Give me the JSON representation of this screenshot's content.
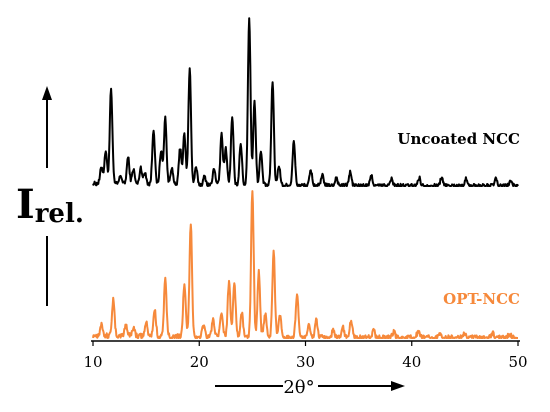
{
  "chart_data": {
    "type": "line",
    "x_range": [
      10,
      50
    ],
    "x_ticks": [
      10,
      20,
      30,
      40,
      50
    ],
    "x_tick_labels": [
      "10",
      "20",
      "30",
      "40",
      "50"
    ],
    "xlabel": "2θ°",
    "ylabel_main": "I",
    "ylabel_sub": "rel.",
    "grid": false,
    "series": [
      {
        "name": "Uncoated NCC",
        "color": "#000000",
        "baseline": 0.0,
        "noise": 0.012,
        "decay": 0.25,
        "peaks": [
          [
            10.8,
            0.1
          ],
          [
            11.2,
            0.2
          ],
          [
            11.7,
            0.57
          ],
          [
            12.6,
            0.05
          ],
          [
            13.3,
            0.16
          ],
          [
            13.8,
            0.09
          ],
          [
            14.5,
            0.1
          ],
          [
            14.9,
            0.07
          ],
          [
            15.7,
            0.33
          ],
          [
            16.4,
            0.2
          ],
          [
            16.8,
            0.4
          ],
          [
            17.4,
            0.1
          ],
          [
            18.2,
            0.22
          ],
          [
            18.6,
            0.3
          ],
          [
            19.1,
            0.7
          ],
          [
            19.7,
            0.1
          ],
          [
            20.5,
            0.05
          ],
          [
            21.4,
            0.1
          ],
          [
            22.1,
            0.3
          ],
          [
            22.5,
            0.22
          ],
          [
            23.1,
            0.4
          ],
          [
            23.9,
            0.25
          ],
          [
            24.7,
            1.0
          ],
          [
            25.2,
            0.5
          ],
          [
            25.8,
            0.2
          ],
          [
            26.9,
            0.62
          ],
          [
            27.5,
            0.12
          ],
          [
            28.9,
            0.26
          ],
          [
            30.5,
            0.09
          ],
          [
            31.6,
            0.06
          ],
          [
            32.9,
            0.05
          ],
          [
            34.2,
            0.08
          ],
          [
            36.2,
            0.06
          ],
          [
            38.1,
            0.04
          ],
          [
            40.7,
            0.05
          ],
          [
            42.8,
            0.05
          ],
          [
            45.1,
            0.04
          ],
          [
            47.9,
            0.04
          ],
          [
            49.3,
            0.03
          ]
        ]
      },
      {
        "name": "OPT-NCC",
        "color": "#F6893B",
        "baseline": 0.0,
        "noise": 0.018,
        "decay": 0.3,
        "peaks": [
          [
            10.8,
            0.08
          ],
          [
            11.9,
            0.24
          ],
          [
            13.1,
            0.08
          ],
          [
            13.8,
            0.06
          ],
          [
            15.0,
            0.09
          ],
          [
            15.8,
            0.18
          ],
          [
            16.8,
            0.38
          ],
          [
            18.6,
            0.36
          ],
          [
            19.2,
            0.76
          ],
          [
            20.4,
            0.08
          ],
          [
            21.3,
            0.12
          ],
          [
            22.1,
            0.17
          ],
          [
            22.8,
            0.38
          ],
          [
            23.3,
            0.38
          ],
          [
            24.0,
            0.17
          ],
          [
            25.0,
            1.0
          ],
          [
            25.6,
            0.44
          ],
          [
            26.2,
            0.16
          ],
          [
            27.0,
            0.57
          ],
          [
            27.6,
            0.14
          ],
          [
            29.2,
            0.3
          ],
          [
            30.3,
            0.08
          ],
          [
            31.0,
            0.12
          ],
          [
            32.6,
            0.05
          ],
          [
            33.5,
            0.07
          ],
          [
            34.3,
            0.12
          ],
          [
            36.4,
            0.05
          ],
          [
            38.3,
            0.04
          ],
          [
            40.6,
            0.04
          ],
          [
            42.7,
            0.04
          ],
          [
            45.0,
            0.03
          ],
          [
            47.6,
            0.03
          ],
          [
            49.2,
            0.03
          ]
        ]
      }
    ]
  }
}
